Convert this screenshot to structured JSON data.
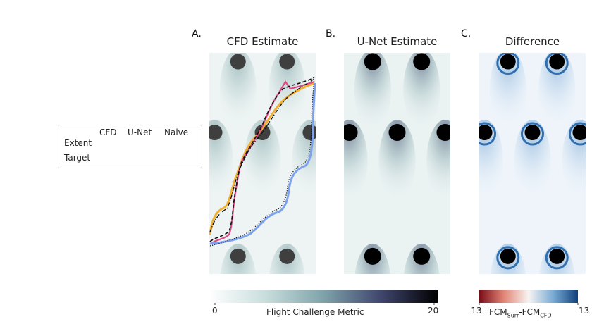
{
  "figure": {
    "panels": [
      {
        "letter": "A.",
        "title": "CFD Estimate"
      },
      {
        "letter": "B.",
        "title": "U-Net Estimate"
      },
      {
        "letter": "C.",
        "title": "Difference"
      }
    ]
  },
  "legend": {
    "row_labels": [
      "Extent",
      "Target"
    ],
    "columns": [
      {
        "name": "CFD",
        "color": "#7ea2ee",
        "target_style": "dotted"
      },
      {
        "name": "U-Net",
        "color": "#de4a86",
        "target_style": "dashed"
      },
      {
        "name": "Naive",
        "color": "#f2b030",
        "target_style": "dashdot"
      }
    ]
  },
  "colorbars": [
    {
      "label": "Flight Challenge Metric",
      "min": "0",
      "max": "20",
      "colormap": "white-teal-navy-black"
    },
    {
      "label_parts": [
        "FCM",
        "Surr",
        "-FCM",
        "CFD"
      ],
      "min": "-13",
      "max": "13",
      "colormap": "red-white-blue"
    }
  ],
  "chart_data": {
    "type": "heatmap",
    "title": "",
    "panels": [
      "CFD Estimate",
      "U-Net Estimate",
      "Difference"
    ],
    "obstacles_norm": [
      {
        "x": 0.27,
        "y": 0.04
      },
      {
        "x": 0.73,
        "y": 0.04
      },
      {
        "x": 0.05,
        "y": 0.36
      },
      {
        "x": 0.5,
        "y": 0.36
      },
      {
        "x": 0.95,
        "y": 0.36
      },
      {
        "x": 0.27,
        "y": 0.92
      },
      {
        "x": 0.73,
        "y": 0.92
      }
    ],
    "fcm_range": [
      0,
      20
    ],
    "difference_range": [
      -13,
      13
    ]
  }
}
